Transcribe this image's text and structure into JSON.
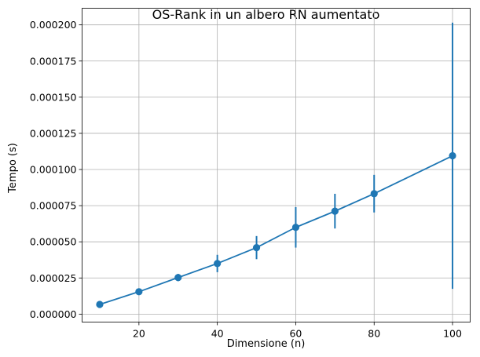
{
  "chart_data": {
    "type": "line",
    "title": "OS-Rank in un albero RN aumentato",
    "xlabel": "Dimensione (n)",
    "ylabel": "Tempo (s)",
    "xlim": [
      5.5,
      104.5
    ],
    "ylim": [
      -5.5e-06,
      0.0002115
    ],
    "xticks": [
      20,
      40,
      60,
      80,
      100
    ],
    "xtick_labels": [
      "20",
      "40",
      "60",
      "80",
      "100"
    ],
    "yticks": [
      0,
      2.5e-05,
      5e-05,
      7.5e-05,
      0.0001,
      0.000125,
      0.00015,
      0.000175,
      0.0002
    ],
    "ytick_labels": [
      "0.000000",
      "0.000025",
      "0.000050",
      "0.000075",
      "0.000100",
      "0.000125",
      "0.000150",
      "0.000175",
      "0.000200"
    ],
    "grid": true,
    "color": "#1f77b4",
    "series": [
      {
        "x": [
          10,
          20,
          30,
          40,
          50,
          60,
          70,
          80,
          100
        ],
        "y": [
          6.7e-06,
          1.55e-05,
          2.53e-05,
          3.5e-05,
          4.6e-05,
          6e-05,
          7.12e-05,
          8.33e-05,
          0.0001095
        ],
        "yerr": [
          1.2e-06,
          1.5e-06,
          2.5e-06,
          6e-06,
          8e-06,
          1.4e-05,
          1.2e-05,
          1.3e-05,
          9.2e-05
        ]
      }
    ]
  }
}
